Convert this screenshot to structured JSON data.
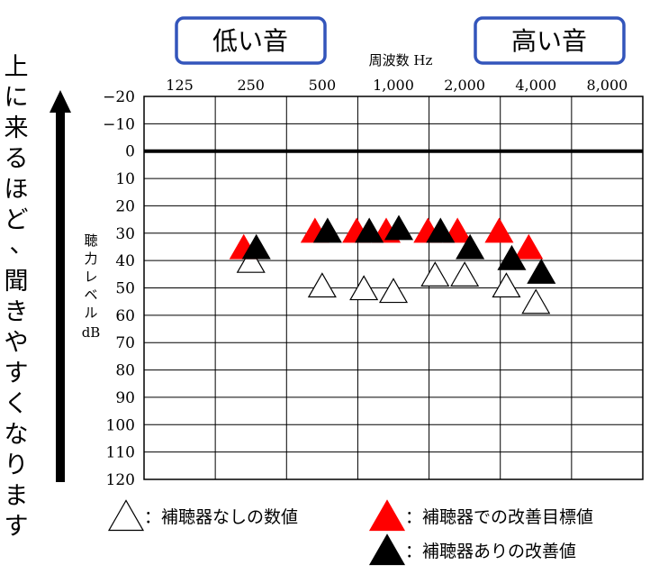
{
  "chart_data": {
    "type": "scatter",
    "title": "",
    "xlabel": "周波数 Hz",
    "ylabel": "聴力レベル dB",
    "x_ticks": [
      "125",
      "250",
      "500",
      "1,000",
      "2,000",
      "4,000",
      "8,000"
    ],
    "y_ticks": [
      "-20",
      "-10",
      "0",
      "10",
      "20",
      "30",
      "40",
      "50",
      "60",
      "70",
      "80",
      "90",
      "100",
      "110",
      "120"
    ],
    "ylim": [
      -20,
      120
    ],
    "y_inverted": true,
    "x_scale": "log2",
    "xlim": [
      125,
      8000
    ],
    "grid": true,
    "reference_line_y": 0,
    "series": [
      {
        "name": "補聴器なしの数値",
        "marker": "open-triangle",
        "color": "#ffffff",
        "points": [
          {
            "x": 250,
            "y": 40
          },
          {
            "x": 500,
            "y": 49
          },
          {
            "x": 750,
            "y": 50
          },
          {
            "x": 1000,
            "y": 51
          },
          {
            "x": 1500,
            "y": 45
          },
          {
            "x": 2000,
            "y": 45
          },
          {
            "x": 3000,
            "y": 49
          },
          {
            "x": 4000,
            "y": 55
          }
        ]
      },
      {
        "name": "補聴器での改善目標値",
        "marker": "filled-triangle",
        "color": "#ff0000",
        "points": [
          {
            "x": 250,
            "y": 35
          },
          {
            "x": 500,
            "y": 29
          },
          {
            "x": 750,
            "y": 29
          },
          {
            "x": 1000,
            "y": 29
          },
          {
            "x": 1500,
            "y": 29
          },
          {
            "x": 2000,
            "y": 29
          },
          {
            "x": 3000,
            "y": 29
          },
          {
            "x": 4000,
            "y": 35
          }
        ]
      },
      {
        "name": "補聴器ありの改善値",
        "marker": "filled-triangle",
        "color": "#000000",
        "points": [
          {
            "x": 250,
            "y": 35
          },
          {
            "x": 500,
            "y": 29
          },
          {
            "x": 750,
            "y": 29
          },
          {
            "x": 1000,
            "y": 28
          },
          {
            "x": 1500,
            "y": 29
          },
          {
            "x": 2000,
            "y": 35
          },
          {
            "x": 3000,
            "y": 39
          },
          {
            "x": 4000,
            "y": 44
          }
        ]
      }
    ]
  },
  "low_label": "低い音",
  "high_label": "高い音",
  "box_color": "#3355bb",
  "side_text": "上に来るほど、聞きやすくなります",
  "ylabel_unit": "dB",
  "legend": [
    {
      "symbol": "△",
      "text": "：補聴器なしの数値"
    },
    {
      "symbol": "▲",
      "text": "：補聴器での改善目標値"
    },
    {
      "symbol": "▲",
      "text": "：補聴器ありの改善値"
    }
  ]
}
